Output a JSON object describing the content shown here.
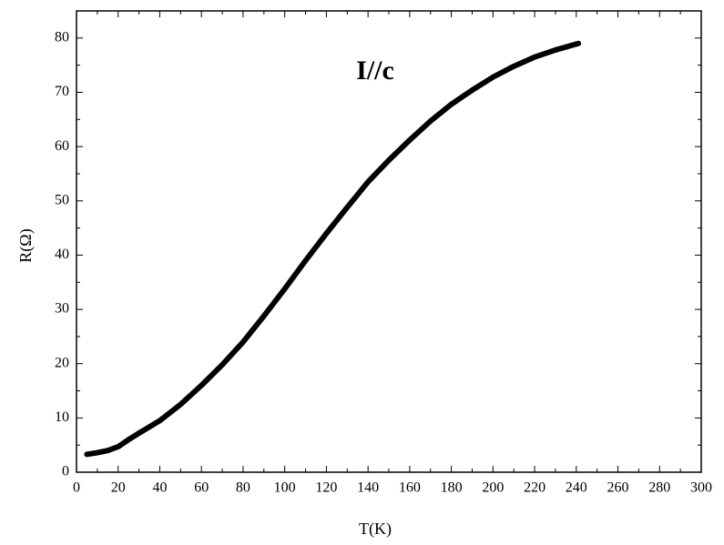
{
  "chart_data": {
    "type": "line",
    "annotation": "I//c",
    "x_label": "T(K)",
    "y_label": "R(Ω)",
    "series": [
      {
        "color": "#000000",
        "x": [
          5,
          10,
          15,
          20,
          25,
          30,
          40,
          50,
          60,
          70,
          80,
          90,
          100,
          110,
          120,
          130,
          140,
          150,
          160,
          170,
          180,
          190,
          200,
          210,
          220,
          230,
          241
        ],
        "values": [
          3.3,
          3.6,
          4.0,
          4.7,
          6.0,
          7.2,
          9.5,
          12.5,
          16.0,
          19.8,
          24.0,
          28.8,
          33.8,
          39.0,
          44.0,
          48.8,
          53.5,
          57.5,
          61.2,
          64.7,
          67.8,
          70.4,
          72.8,
          74.8,
          76.5,
          77.8,
          79.0
        ]
      }
    ],
    "xlim": [
      0,
      300
    ],
    "ylim": [
      0,
      85
    ],
    "xticks": [
      0,
      20,
      40,
      60,
      80,
      100,
      120,
      140,
      160,
      180,
      200,
      220,
      240,
      260,
      280,
      300
    ],
    "yticks": [
      0,
      10,
      20,
      30,
      40,
      50,
      60,
      70,
      80
    ]
  }
}
